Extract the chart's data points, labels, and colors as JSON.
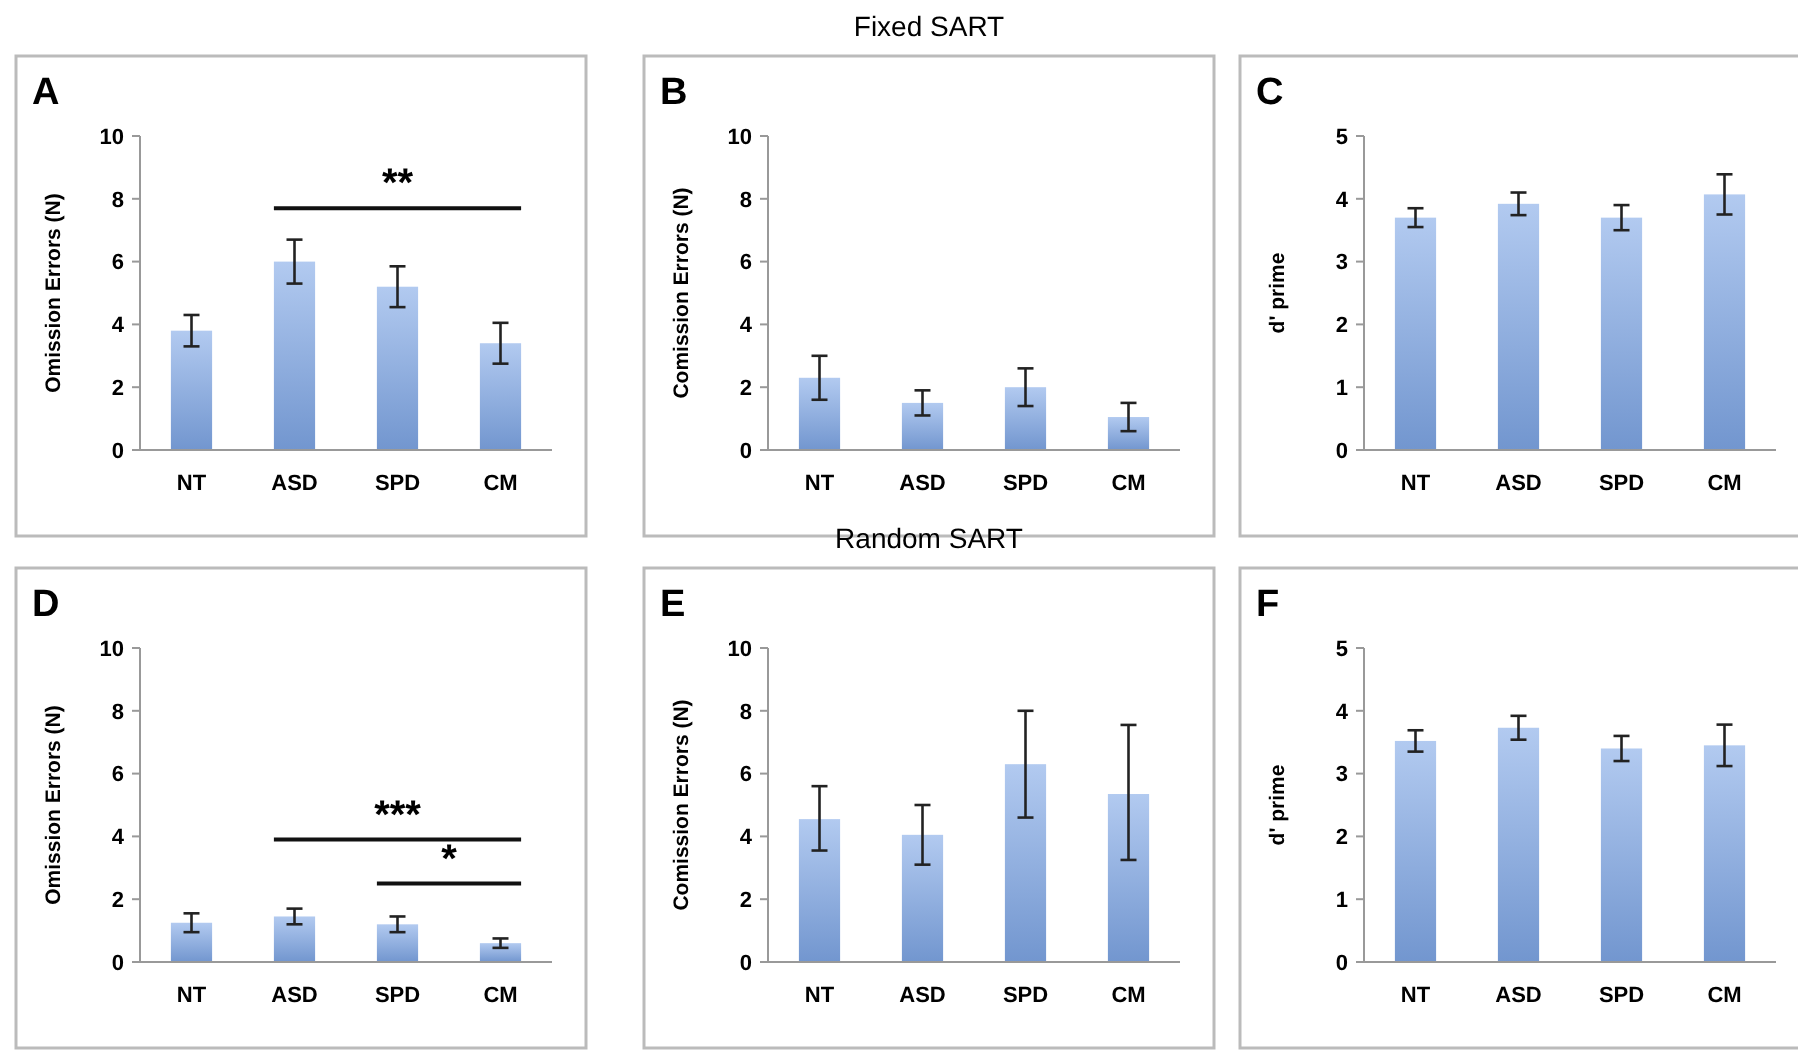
{
  "chart_data": [
    {
      "type": "bar",
      "title": "A",
      "ylabel": "Omission Errors (N)",
      "categories": [
        "NT",
        "ASD",
        "SPD",
        "CM"
      ],
      "values": [
        3.8,
        6.0,
        5.2,
        3.4
      ],
      "errors": [
        0.5,
        0.7,
        0.65,
        0.65
      ],
      "color": "#7fa7e6",
      "ylim": [
        0,
        10
      ],
      "yticks": [
        0,
        2,
        4,
        6,
        8,
        10
      ],
      "grid": false,
      "annotations": [
        "**"
      ]
    },
    {
      "type": "bar",
      "title": "B",
      "subtitle": "Fixed SART",
      "ylabel": "Comission Errors (N)",
      "categories": [
        "NT",
        "ASD",
        "SPD",
        "CM"
      ],
      "values": [
        2.3,
        1.5,
        2.0,
        1.05
      ],
      "errors": [
        0.7,
        0.4,
        0.6,
        0.45
      ],
      "color": "#7fa7e6",
      "ylim": [
        0,
        10
      ],
      "yticks": [
        0,
        2,
        4,
        6,
        8,
        10
      ],
      "grid": false
    },
    {
      "type": "bar",
      "title": "C",
      "ylabel": "d' prime",
      "categories": [
        "NT",
        "ASD",
        "SPD",
        "CM"
      ],
      "values": [
        3.7,
        3.92,
        3.7,
        4.07
      ],
      "errors": [
        0.15,
        0.18,
        0.2,
        0.32
      ],
      "color": "#7fa7e6",
      "ylim": [
        0,
        5
      ],
      "yticks": [
        0,
        1,
        2,
        3,
        4,
        5
      ],
      "grid": false
    },
    {
      "type": "bar",
      "title": "D",
      "ylabel": "Omission Errors (N)",
      "categories": [
        "NT",
        "ASD",
        "SPD",
        "CM"
      ],
      "values": [
        1.25,
        1.45,
        1.2,
        0.6
      ],
      "errors": [
        0.3,
        0.25,
        0.25,
        0.15
      ],
      "color": "#7fa7e6",
      "ylim": [
        0,
        10
      ],
      "yticks": [
        0,
        2,
        4,
        6,
        8,
        10
      ],
      "grid": false,
      "annotations": [
        "***",
        "*"
      ]
    },
    {
      "type": "bar",
      "title": "E",
      "subtitle": "Random SART",
      "ylabel": "Comission Errors (N)",
      "categories": [
        "NT",
        "ASD",
        "SPD",
        "CM"
      ],
      "values": [
        4.55,
        4.05,
        6.3,
        5.35
      ],
      "errors": [
        [
          3.55,
          5.6
        ],
        [
          3.1,
          5.0
        ],
        [
          4.6,
          8.0
        ],
        [
          3.25,
          7.55
        ]
      ],
      "color": "#7fa7e6",
      "ylim": [
        0,
        10
      ],
      "yticks": [
        0,
        2,
        4,
        6,
        8,
        10
      ],
      "grid": false
    },
    {
      "type": "bar",
      "title": "F",
      "ylabel": "d' prime",
      "categories": [
        "NT",
        "ASD",
        "SPD",
        "CM"
      ],
      "values": [
        3.52,
        3.73,
        3.4,
        3.45
      ],
      "errors": [
        0.17,
        0.19,
        0.2,
        0.33
      ],
      "color": "#7fa7e6",
      "ylim": [
        0,
        5
      ],
      "yticks": [
        0,
        1,
        2,
        3,
        4,
        5
      ],
      "grid": false
    }
  ]
}
